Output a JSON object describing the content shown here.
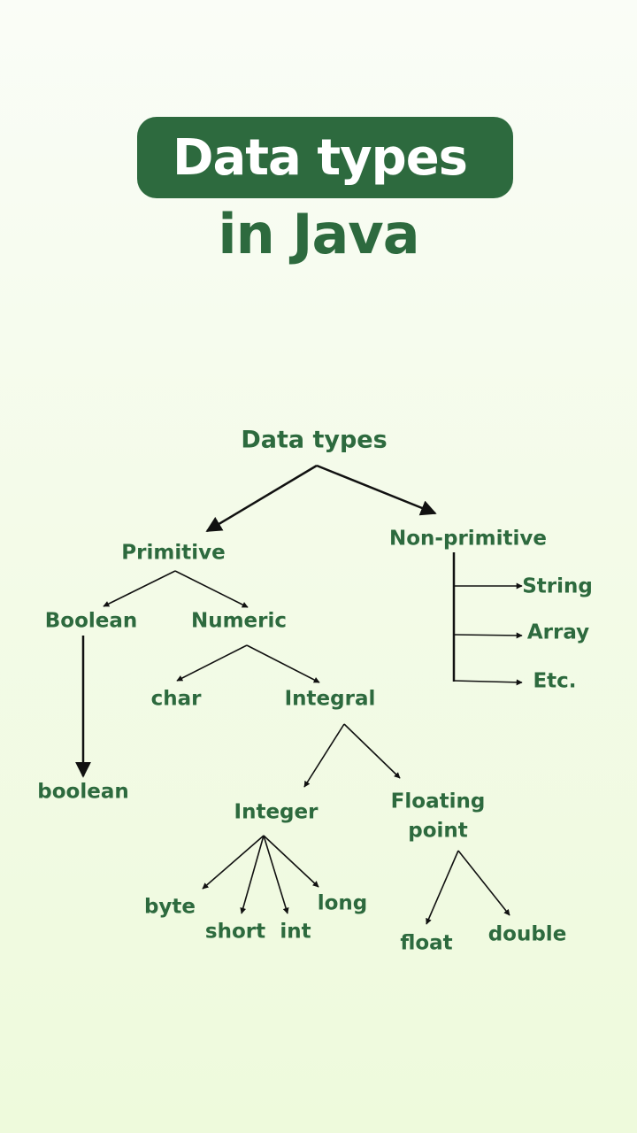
{
  "header": {
    "title": "Data types",
    "subtitle": "in Java"
  },
  "diagram": {
    "root": "Data types",
    "primitive": "Primitive",
    "non_primitive": "Non-primitive",
    "boolean_group": "Boolean",
    "numeric": "Numeric",
    "boolean_type": "boolean",
    "char": "char",
    "integral": "Integral",
    "integer": "Integer",
    "floating_point_line1": "Floating",
    "floating_point_line2": "point",
    "byte": "byte",
    "short": "short",
    "int": "int",
    "long": "long",
    "float": "float",
    "double": "double",
    "string": "String",
    "array": "Array",
    "etc": "Etc."
  },
  "colors": {
    "accent": "#2d6a3e",
    "arrow": "#111111",
    "background_top": "#fafdf7",
    "background_bottom": "#eefadc"
  }
}
